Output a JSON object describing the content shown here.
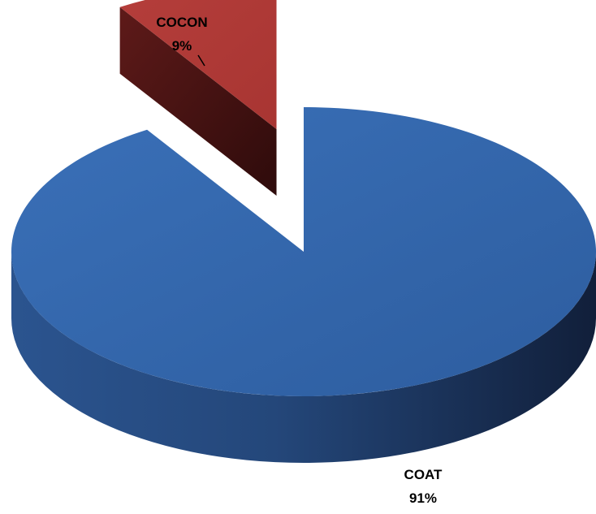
{
  "chart_data": {
    "type": "pie",
    "style": "3d-exploded",
    "legend": "none",
    "slices": [
      {
        "label": "COAT",
        "value": 91,
        "value_label": "91%",
        "color": "#3466aa"
      },
      {
        "label": "COCON",
        "value": 9,
        "value_label": "9%",
        "color": "#b43a38",
        "exploded": true
      }
    ]
  }
}
